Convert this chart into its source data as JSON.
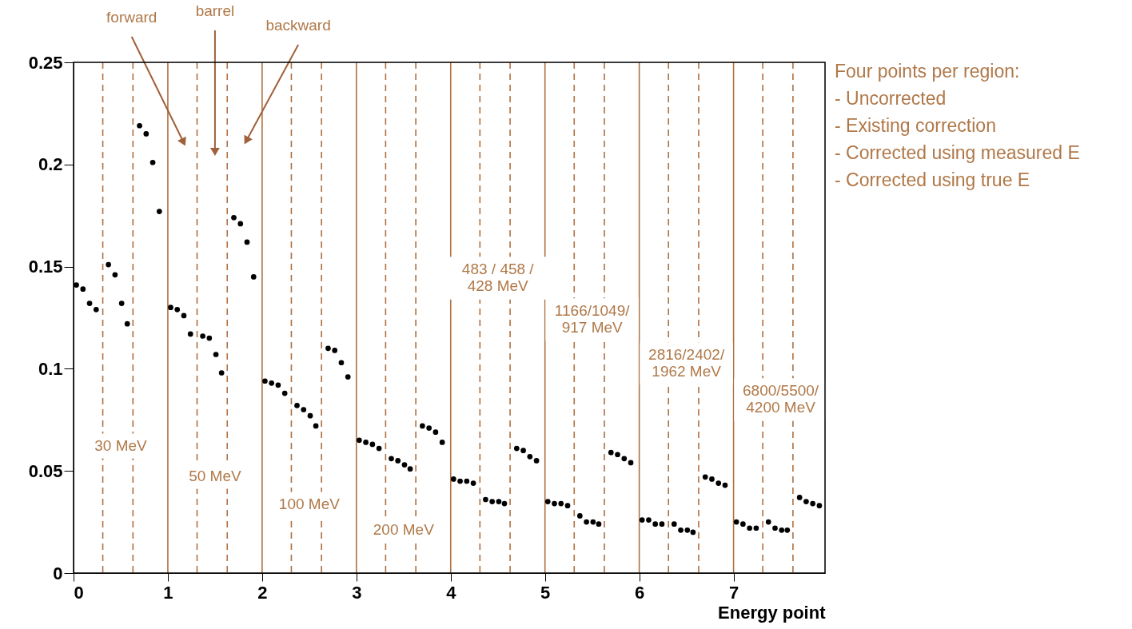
{
  "chart_data": {
    "type": "scatter",
    "xlabel": "Energy point",
    "x": [
      0.03,
      0.1,
      0.17,
      0.24,
      0.37,
      0.44,
      0.51,
      0.57,
      0.7,
      0.77,
      0.84,
      0.91,
      1.03,
      1.1,
      1.17,
      1.24,
      1.37,
      1.44,
      1.51,
      1.57,
      1.7,
      1.77,
      1.84,
      1.91,
      2.03,
      2.1,
      2.17,
      2.24,
      2.37,
      2.44,
      2.51,
      2.57,
      2.7,
      2.77,
      2.84,
      2.91,
      3.03,
      3.1,
      3.17,
      3.24,
      3.37,
      3.44,
      3.51,
      3.57,
      3.7,
      3.77,
      3.84,
      3.91,
      4.03,
      4.1,
      4.17,
      4.24,
      4.37,
      4.44,
      4.51,
      4.57,
      4.7,
      4.77,
      4.84,
      4.91,
      5.03,
      5.1,
      5.17,
      5.24,
      5.37,
      5.44,
      5.51,
      5.57,
      5.7,
      5.77,
      5.84,
      5.91,
      6.03,
      6.1,
      6.17,
      6.24,
      6.37,
      6.44,
      6.51,
      6.57,
      6.7,
      6.77,
      6.84,
      6.91,
      7.03,
      7.1,
      7.17,
      7.24,
      7.37,
      7.44,
      7.51,
      7.57,
      7.7,
      7.77,
      7.84,
      7.91
    ],
    "series": [
      {
        "color": "#000000",
        "values": [
          0.141,
          0.139,
          0.132,
          0.129,
          0.151,
          0.146,
          0.132,
          0.122,
          0.219,
          0.215,
          0.201,
          0.177,
          0.13,
          0.129,
          0.126,
          0.117,
          0.116,
          0.115,
          0.107,
          0.098,
          0.174,
          0.171,
          0.162,
          0.145,
          0.094,
          0.093,
          0.092,
          0.088,
          0.082,
          0.08,
          0.077,
          0.072,
          0.11,
          0.109,
          0.103,
          0.096,
          0.065,
          0.064,
          0.063,
          0.061,
          0.056,
          0.055,
          0.053,
          0.051,
          0.072,
          0.071,
          0.069,
          0.064,
          0.046,
          0.045,
          0.045,
          0.044,
          0.036,
          0.035,
          0.035,
          0.034,
          0.061,
          0.06,
          0.057,
          0.055,
          0.035,
          0.034,
          0.034,
          0.033,
          0.028,
          0.025,
          0.025,
          0.024,
          0.059,
          0.058,
          0.056,
          0.054,
          0.026,
          0.026,
          0.024,
          0.024,
          0.024,
          0.021,
          0.021,
          0.02,
          0.047,
          0.046,
          0.044,
          0.043,
          0.025,
          0.024,
          0.022,
          0.022,
          0.025,
          0.022,
          0.021,
          0.021,
          0.037,
          0.035,
          0.034,
          0.033
        ]
      }
    ],
    "xlim": [
      0,
      7.97
    ],
    "ylim": [
      0,
      0.25
    ],
    "xticks": [
      0,
      1,
      2,
      3,
      4,
      5,
      6,
      7
    ],
    "yticks": [
      0,
      0.05,
      0.1,
      0.15,
      0.2,
      0.25
    ],
    "marker": "circle",
    "grid": false,
    "ref_lines": [
      {
        "axis": "x",
        "value": 1,
        "color": "#b07040",
        "line_style": "solid"
      },
      {
        "axis": "x",
        "value": 2,
        "color": "#b07040",
        "line_style": "solid"
      },
      {
        "axis": "x",
        "value": 3,
        "color": "#b07040",
        "line_style": "solid"
      },
      {
        "axis": "x",
        "value": 4,
        "color": "#b07040",
        "line_style": "solid"
      },
      {
        "axis": "x",
        "value": 5,
        "color": "#b07040",
        "line_style": "solid"
      },
      {
        "axis": "x",
        "value": 6,
        "color": "#b07040",
        "line_style": "solid"
      },
      {
        "axis": "x",
        "value": 7,
        "color": "#b07040",
        "line_style": "solid"
      },
      {
        "axis": "x",
        "value": 0.31,
        "color": "#b07040",
        "line_style": "dashed"
      },
      {
        "axis": "x",
        "value": 0.63,
        "color": "#b07040",
        "line_style": "dashed"
      },
      {
        "axis": "x",
        "value": 1.31,
        "color": "#b07040",
        "line_style": "dashed"
      },
      {
        "axis": "x",
        "value": 1.63,
        "color": "#b07040",
        "line_style": "dashed"
      },
      {
        "axis": "x",
        "value": 2.31,
        "color": "#b07040",
        "line_style": "dashed"
      },
      {
        "axis": "x",
        "value": 2.63,
        "color": "#b07040",
        "line_style": "dashed"
      },
      {
        "axis": "x",
        "value": 3.31,
        "color": "#b07040",
        "line_style": "dashed"
      },
      {
        "axis": "x",
        "value": 3.63,
        "color": "#b07040",
        "line_style": "dashed"
      },
      {
        "axis": "x",
        "value": 4.31,
        "color": "#b07040",
        "line_style": "dashed"
      },
      {
        "axis": "x",
        "value": 4.63,
        "color": "#b07040",
        "line_style": "dashed"
      },
      {
        "axis": "x",
        "value": 5.31,
        "color": "#b07040",
        "line_style": "dashed"
      },
      {
        "axis": "x",
        "value": 5.63,
        "color": "#b07040",
        "line_style": "dashed"
      },
      {
        "axis": "x",
        "value": 6.31,
        "color": "#b07040",
        "line_style": "dashed"
      },
      {
        "axis": "x",
        "value": 6.63,
        "color": "#b07040",
        "line_style": "dashed"
      },
      {
        "axis": "x",
        "value": 7.31,
        "color": "#b07040",
        "line_style": "dashed"
      },
      {
        "axis": "x",
        "value": 7.63,
        "color": "#b07040",
        "line_style": "dashed"
      }
    ],
    "annotations": [
      "forward",
      "barrel",
      "backward",
      "30 MeV",
      "50 MeV",
      "100 MeV",
      "200 MeV",
      "483 / 458 /\n428 MeV",
      "1166/1049/\n917 MeV",
      "2816/2402/\n1962 MeV",
      "6800/5500/\n4200 MeV",
      "Four points per region:",
      "- Uncorrected",
      "- Existing correction",
      "- Corrected using measured E",
      "- Corrected using true E"
    ]
  }
}
